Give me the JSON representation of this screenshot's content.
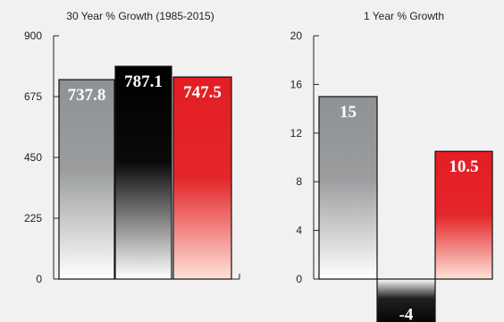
{
  "colors": {
    "background": "#f1f1f1",
    "gray_top": "#8f9294",
    "gray_bottom": "#ffffff",
    "black_top": "#000000",
    "red_top": "#e31e24",
    "red_bottom": "#fde2d8",
    "axis": "#222222"
  },
  "chart_data": [
    {
      "type": "bar",
      "title": "30 Year % Growth (1985-2015)",
      "categories": [
        "",
        "",
        ""
      ],
      "values": [
        737.8,
        787.1,
        747.5
      ],
      "value_labels": [
        "737.8",
        "787.1",
        "747.5"
      ],
      "bar_styles": [
        "gray",
        "black",
        "red"
      ],
      "ylim": [
        0,
        900
      ],
      "yticks": [
        0,
        225,
        450,
        675,
        900
      ],
      "ytick_labels": [
        "0",
        "225",
        "450",
        "675",
        "900"
      ],
      "grid": false,
      "xlabel": "",
      "ylabel": ""
    },
    {
      "type": "bar",
      "title": "1 Year % Growth",
      "categories": [
        "",
        "",
        ""
      ],
      "values": [
        15,
        -4,
        10.5
      ],
      "value_labels": [
        "15",
        "-4",
        "10.5"
      ],
      "bar_styles": [
        "gray",
        "black",
        "red"
      ],
      "ylim": [
        0,
        20
      ],
      "yticks": [
        0,
        4,
        8,
        12,
        16,
        20
      ],
      "ytick_labels": [
        "0",
        "4",
        "8",
        "12",
        "16",
        "20"
      ],
      "grid": false,
      "xlabel": "",
      "ylabel": ""
    }
  ]
}
